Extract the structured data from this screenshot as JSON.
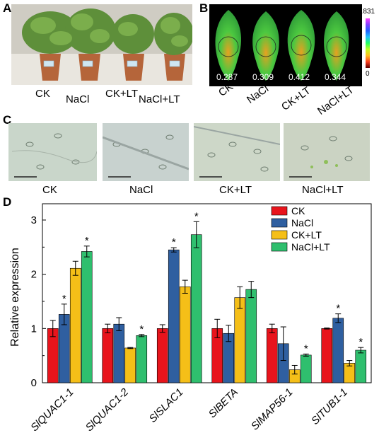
{
  "panels": {
    "a": {
      "letter": "A",
      "labels": [
        "CK",
        "NaCl",
        "CK+LT",
        "NaCl+LT"
      ]
    },
    "b": {
      "letter": "B",
      "labels": [
        "CK",
        "NaCl",
        "CK+LT",
        "NaCl+LT"
      ],
      "values": [
        "0.287",
        "0.309",
        "0.412",
        "0.344"
      ],
      "scale_max": "0.831",
      "scale_min": "0"
    },
    "c": {
      "letter": "C",
      "labels": [
        "CK",
        "NaCl",
        "CK+LT",
        "NaCl+LT"
      ]
    },
    "d": {
      "letter": "D"
    }
  },
  "colors": {
    "CK": "#e8141c",
    "NaCl": "#2f5fa0",
    "CK+LT": "#f5bf18",
    "NaCl+LT": "#2fbf6e"
  },
  "chart_data": {
    "type": "bar",
    "ylabel": "Relative expression",
    "xlabel": "",
    "ylim": [
      0,
      3.3
    ],
    "yticks": [
      "0",
      "1",
      "2",
      "3"
    ],
    "legend_position": "top-right",
    "categories": [
      "SlQUAC1-1",
      "SlQUAC1-2",
      "SlSLAC1",
      "SlBETA",
      "SlMAP56-1",
      "SlTUB1-1"
    ],
    "series": [
      {
        "name": "CK",
        "values": [
          1.0,
          1.0,
          1.0,
          1.0,
          1.0,
          1.0
        ],
        "errors": [
          0.15,
          0.08,
          0.07,
          0.17,
          0.08,
          0.01
        ],
        "sig": [
          false,
          false,
          false,
          false,
          false,
          false
        ]
      },
      {
        "name": "NaCl",
        "values": [
          1.26,
          1.08,
          2.45,
          0.91,
          0.72,
          1.19
        ],
        "errors": [
          0.19,
          0.12,
          0.04,
          0.15,
          0.31,
          0.08
        ],
        "sig": [
          true,
          false,
          true,
          false,
          false,
          true
        ]
      },
      {
        "name": "CK+LT",
        "values": [
          2.11,
          0.64,
          1.77,
          1.57,
          0.24,
          0.36
        ],
        "errors": [
          0.13,
          0.01,
          0.12,
          0.2,
          0.08,
          0.05
        ],
        "sig": [
          false,
          false,
          false,
          false,
          false,
          false
        ]
      },
      {
        "name": "NaCl+LT",
        "values": [
          2.42,
          0.87,
          2.73,
          1.72,
          0.51,
          0.6
        ],
        "errors": [
          0.1,
          0.02,
          0.24,
          0.15,
          0.02,
          0.05
        ],
        "sig": [
          true,
          true,
          true,
          false,
          true,
          true
        ]
      }
    ]
  }
}
